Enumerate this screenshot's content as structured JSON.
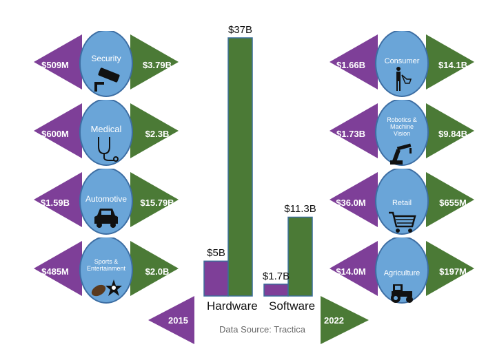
{
  "source": "Data Source: Tractica",
  "colors": {
    "purple": "#7e3f98",
    "green": "#4b7a36",
    "blue": "#6aa5d8",
    "outline": "#3d6ea3"
  },
  "years": {
    "start": "2015",
    "end": "2022"
  },
  "chart_data": {
    "type": "bar",
    "categories": [
      "Hardware",
      "Software"
    ],
    "series": [
      {
        "values": [
          5,
          1.7
        ]
      },
      {
        "values": [
          37,
          11.3
        ]
      }
    ],
    "data_labels": [
      [
        "$5B",
        "$1.7B"
      ],
      [
        "$37B",
        "$11.3B"
      ]
    ],
    "ylim": [
      0,
      37
    ]
  },
  "segments": [
    {
      "name": "Security",
      "v2015": "$509M",
      "v2022": "$3.79B",
      "icon": "security-camera-icon"
    },
    {
      "name": "Medical",
      "v2015": "$600M",
      "v2022": "$2.3B",
      "icon": "stethoscope-icon"
    },
    {
      "name": "Automotive",
      "v2015": "$1.59B",
      "v2022": "$15.79B",
      "icon": "car-icon"
    },
    {
      "name": "Sports & Entertainment",
      "v2015": "$485M",
      "v2022": "$2.0B",
      "icon": "football-star-icon"
    },
    {
      "name": "Consumer",
      "v2015": "$1.66B",
      "v2022": "$14.1B",
      "icon": "shopper-icon"
    },
    {
      "name": "Robotics & Machine Vision",
      "v2015": "$1.73B",
      "v2022": "$9.84B",
      "icon": "robot-arm-icon"
    },
    {
      "name": "Retail",
      "v2015": "$36.0M",
      "v2022": "$655M",
      "icon": "shopping-cart-icon"
    },
    {
      "name": "Agriculture",
      "v2015": "$14.0M",
      "v2022": "$197M",
      "icon": "tractor-icon"
    }
  ]
}
